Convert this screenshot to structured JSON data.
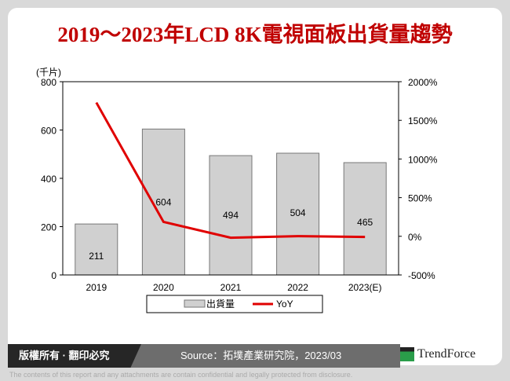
{
  "title": "2019～2023年LCD 8K電視面板出貨量趨勢",
  "footer": {
    "copyright": "版權所有 · 翻印必究",
    "source": "Source：拓墣產業研究院，2023/03",
    "logo": "TrendForce",
    "disclaimer": "The contents of this report and any attachments are contain confidential and legally protected from disclosure."
  },
  "colors": {
    "bar": "#d0d0d0",
    "line": "#e00000",
    "title": "#c00000"
  },
  "chart_data": {
    "type": "bar+line",
    "categories": [
      "2019",
      "2020",
      "2021",
      "2022",
      "2023(E)"
    ],
    "ylabel": "(千片)",
    "ylim": [
      0,
      800
    ],
    "yticks": [
      "0",
      "200",
      "400",
      "600",
      "800"
    ],
    "y2lim": [
      -500,
      2000
    ],
    "y2ticks": [
      "-500%",
      "0%",
      "500%",
      "1000%",
      "1500%",
      "2000%"
    ],
    "legend_position": "bottom",
    "series": [
      {
        "name": "出貨量",
        "type": "bar",
        "values": [
          211,
          604,
          494,
          504,
          465
        ],
        "labels": [
          "211",
          "604",
          "494",
          "504",
          "465"
        ]
      },
      {
        "name": "YoY",
        "type": "line",
        "axis": "right",
        "values": [
          1730,
          186,
          -18,
          2,
          -8
        ]
      }
    ]
  }
}
